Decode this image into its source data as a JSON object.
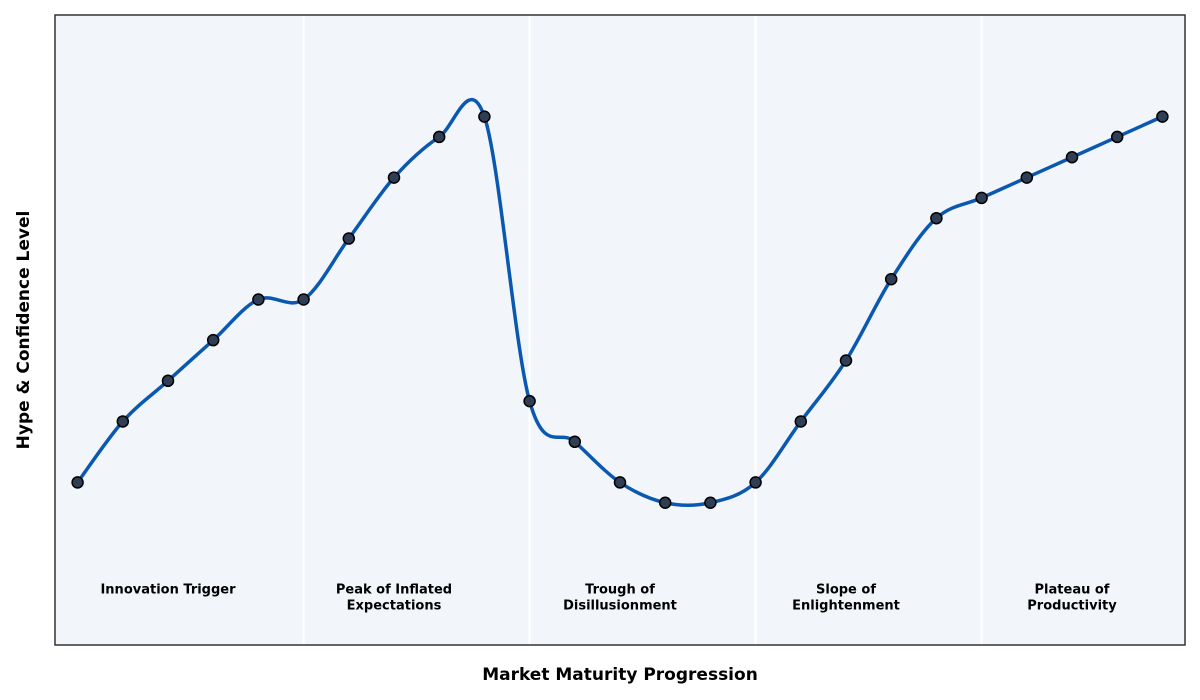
{
  "chart_data": {
    "type": "line",
    "x_label": "Market Maturity Progression",
    "y_label": "Hype & Confidence Level",
    "x": [
      0,
      1,
      2,
      3,
      4,
      5,
      6,
      7,
      8,
      9,
      10,
      11,
      12,
      13,
      14,
      15,
      16,
      17,
      18,
      19,
      20,
      21,
      22,
      23,
      24
    ],
    "series": [
      {
        "color": "#0a58b0",
        "marker_color": "#2f3e55",
        "values": [
          8,
          11,
          13,
          15,
          17,
          17,
          20,
          23,
          25,
          26,
          12,
          10,
          8,
          7,
          7,
          8,
          11,
          14,
          18,
          21,
          22,
          23,
          24,
          25,
          26
        ]
      }
    ],
    "xlim": [
      -0.5,
      24.5
    ],
    "ylim": [
      0,
      31
    ],
    "phase_boundaries": [
      5,
      10,
      15,
      20
    ],
    "phases": [
      [
        "Innovation Trigger"
      ],
      [
        "Peak of Inflated",
        "Expectations"
      ],
      [
        "Trough of",
        "Disillusionment"
      ],
      [
        "Slope of",
        "Enlightenment"
      ],
      [
        "Plateau of",
        "Productivity"
      ]
    ],
    "background": "#f2f6fa"
  }
}
